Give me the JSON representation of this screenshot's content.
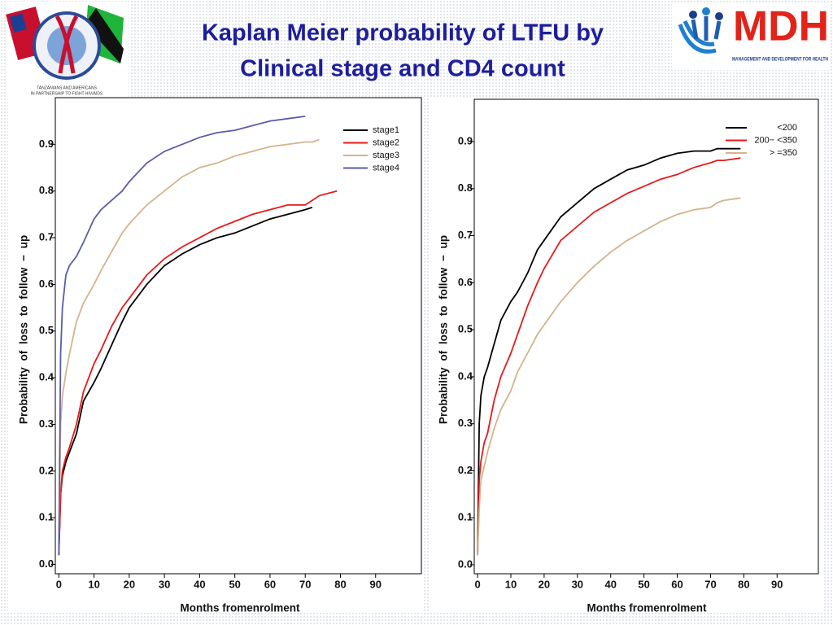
{
  "header": {
    "title": [
      "Kaplan Meier probability of LTFU by",
      "Clinical stage and CD4 count"
    ],
    "left_logo_text": [
      "TANZANIANS AND AMERICANS",
      "IN PARTNERSHIP TO FIGHT HIV/AIDS"
    ],
    "right_logo": {
      "name": "MDH",
      "tagline": "MANAGEMENT AND DEVELOPMENT FOR HEALTH"
    }
  },
  "chart_data": [
    {
      "type": "line",
      "x_label": "Months fromenrolment",
      "y_label": "Probability of loss to follow − up",
      "x": [
        0,
        0.5,
        1,
        2,
        3,
        5,
        7,
        10,
        12,
        15,
        18,
        20,
        25,
        30,
        35,
        40,
        45,
        50,
        55,
        60,
        65,
        70,
        72,
        74,
        79
      ],
      "series": [
        {
          "name": "stage1",
          "color": "#000000",
          "values": [
            0.02,
            0.15,
            0.19,
            0.22,
            0.24,
            0.28,
            0.35,
            0.39,
            0.42,
            0.47,
            0.52,
            0.55,
            0.6,
            0.64,
            0.665,
            0.685,
            0.7,
            0.71,
            0.725,
            0.74,
            0.75,
            0.76,
            0.765,
            null,
            null
          ]
        },
        {
          "name": "stage2",
          "color": "#e41a1c",
          "values": [
            0.02,
            0.15,
            0.2,
            0.23,
            0.25,
            0.3,
            0.37,
            0.43,
            0.46,
            0.51,
            0.55,
            0.57,
            0.62,
            0.655,
            0.68,
            0.7,
            0.72,
            0.735,
            0.75,
            0.76,
            0.77,
            0.77,
            0.78,
            0.79,
            0.8
          ]
        },
        {
          "name": "stage3",
          "color": "#d2b48c",
          "values": [
            0.02,
            0.3,
            0.36,
            0.41,
            0.45,
            0.52,
            0.56,
            0.6,
            0.63,
            0.67,
            0.71,
            0.73,
            0.77,
            0.8,
            0.83,
            0.85,
            0.86,
            0.875,
            0.885,
            0.895,
            0.9,
            0.905,
            0.905,
            0.91,
            null
          ]
        },
        {
          "name": "stage4",
          "color": "#5b5ba8",
          "values": [
            0.02,
            0.45,
            0.55,
            0.62,
            0.64,
            0.66,
            0.69,
            0.74,
            0.76,
            0.78,
            0.8,
            0.82,
            0.86,
            0.885,
            0.9,
            0.915,
            0.925,
            0.93,
            0.94,
            0.95,
            0.955,
            0.96,
            null,
            null,
            null
          ]
        }
      ],
      "xlim": [
        -1,
        103
      ],
      "ylim": [
        -0.02,
        1.0
      ],
      "xticks": [
        0,
        10,
        20,
        30,
        40,
        50,
        60,
        70,
        80,
        90
      ],
      "yticks": [
        {
          "value": 0,
          "label": "0.0"
        },
        0.1,
        0.2,
        0.3,
        0.4,
        0.5,
        0.6,
        0.7,
        0.8,
        0.9
      ],
      "legend": "upper right"
    },
    {
      "type": "line",
      "x_label": "Months fromenrolment",
      "y_label": "Probability of loss to follow − up",
      "x": [
        0,
        0.5,
        1,
        2,
        3,
        5,
        7,
        10,
        12,
        15,
        18,
        20,
        25,
        30,
        35,
        40,
        45,
        50,
        55,
        60,
        65,
        70,
        72,
        74,
        79
      ],
      "series": [
        {
          "name": "<200",
          "color": "#000000",
          "values": [
            0.02,
            0.3,
            0.36,
            0.4,
            0.42,
            0.47,
            0.52,
            0.56,
            0.58,
            0.62,
            0.67,
            0.69,
            0.74,
            0.77,
            0.8,
            0.82,
            0.84,
            0.85,
            0.865,
            0.875,
            0.88,
            0.88,
            0.885,
            0.885,
            0.885
          ]
        },
        {
          "name": "200− <350",
          "color": "#e41a1c",
          "values": [
            0.02,
            0.18,
            0.22,
            0.26,
            0.28,
            0.35,
            0.4,
            0.45,
            0.49,
            0.55,
            0.6,
            0.63,
            0.69,
            0.72,
            0.75,
            0.77,
            0.79,
            0.805,
            0.82,
            0.83,
            0.845,
            0.855,
            0.86,
            0.86,
            0.865
          ]
        },
        {
          "name": "> =350",
          "color": "#d2b48c",
          "values": [
            0.02,
            0.12,
            0.18,
            0.21,
            0.24,
            0.29,
            0.33,
            0.37,
            0.41,
            0.45,
            0.49,
            0.51,
            0.56,
            0.6,
            0.635,
            0.665,
            0.69,
            0.71,
            0.73,
            0.745,
            0.755,
            0.76,
            0.77,
            0.775,
            0.78
          ]
        }
      ],
      "xlim": [
        -1,
        102.4
      ],
      "ylim": [
        -0.019,
        0.99
      ],
      "xticks": [
        0,
        10,
        20,
        30,
        40,
        50,
        60,
        70,
        80,
        90
      ],
      "yticks": [
        {
          "value": 0,
          "label": "0.0"
        },
        0.1,
        0.2,
        0.3,
        0.4,
        0.5,
        0.6,
        0.7,
        0.8,
        0.9
      ],
      "legend": "upper right"
    }
  ]
}
